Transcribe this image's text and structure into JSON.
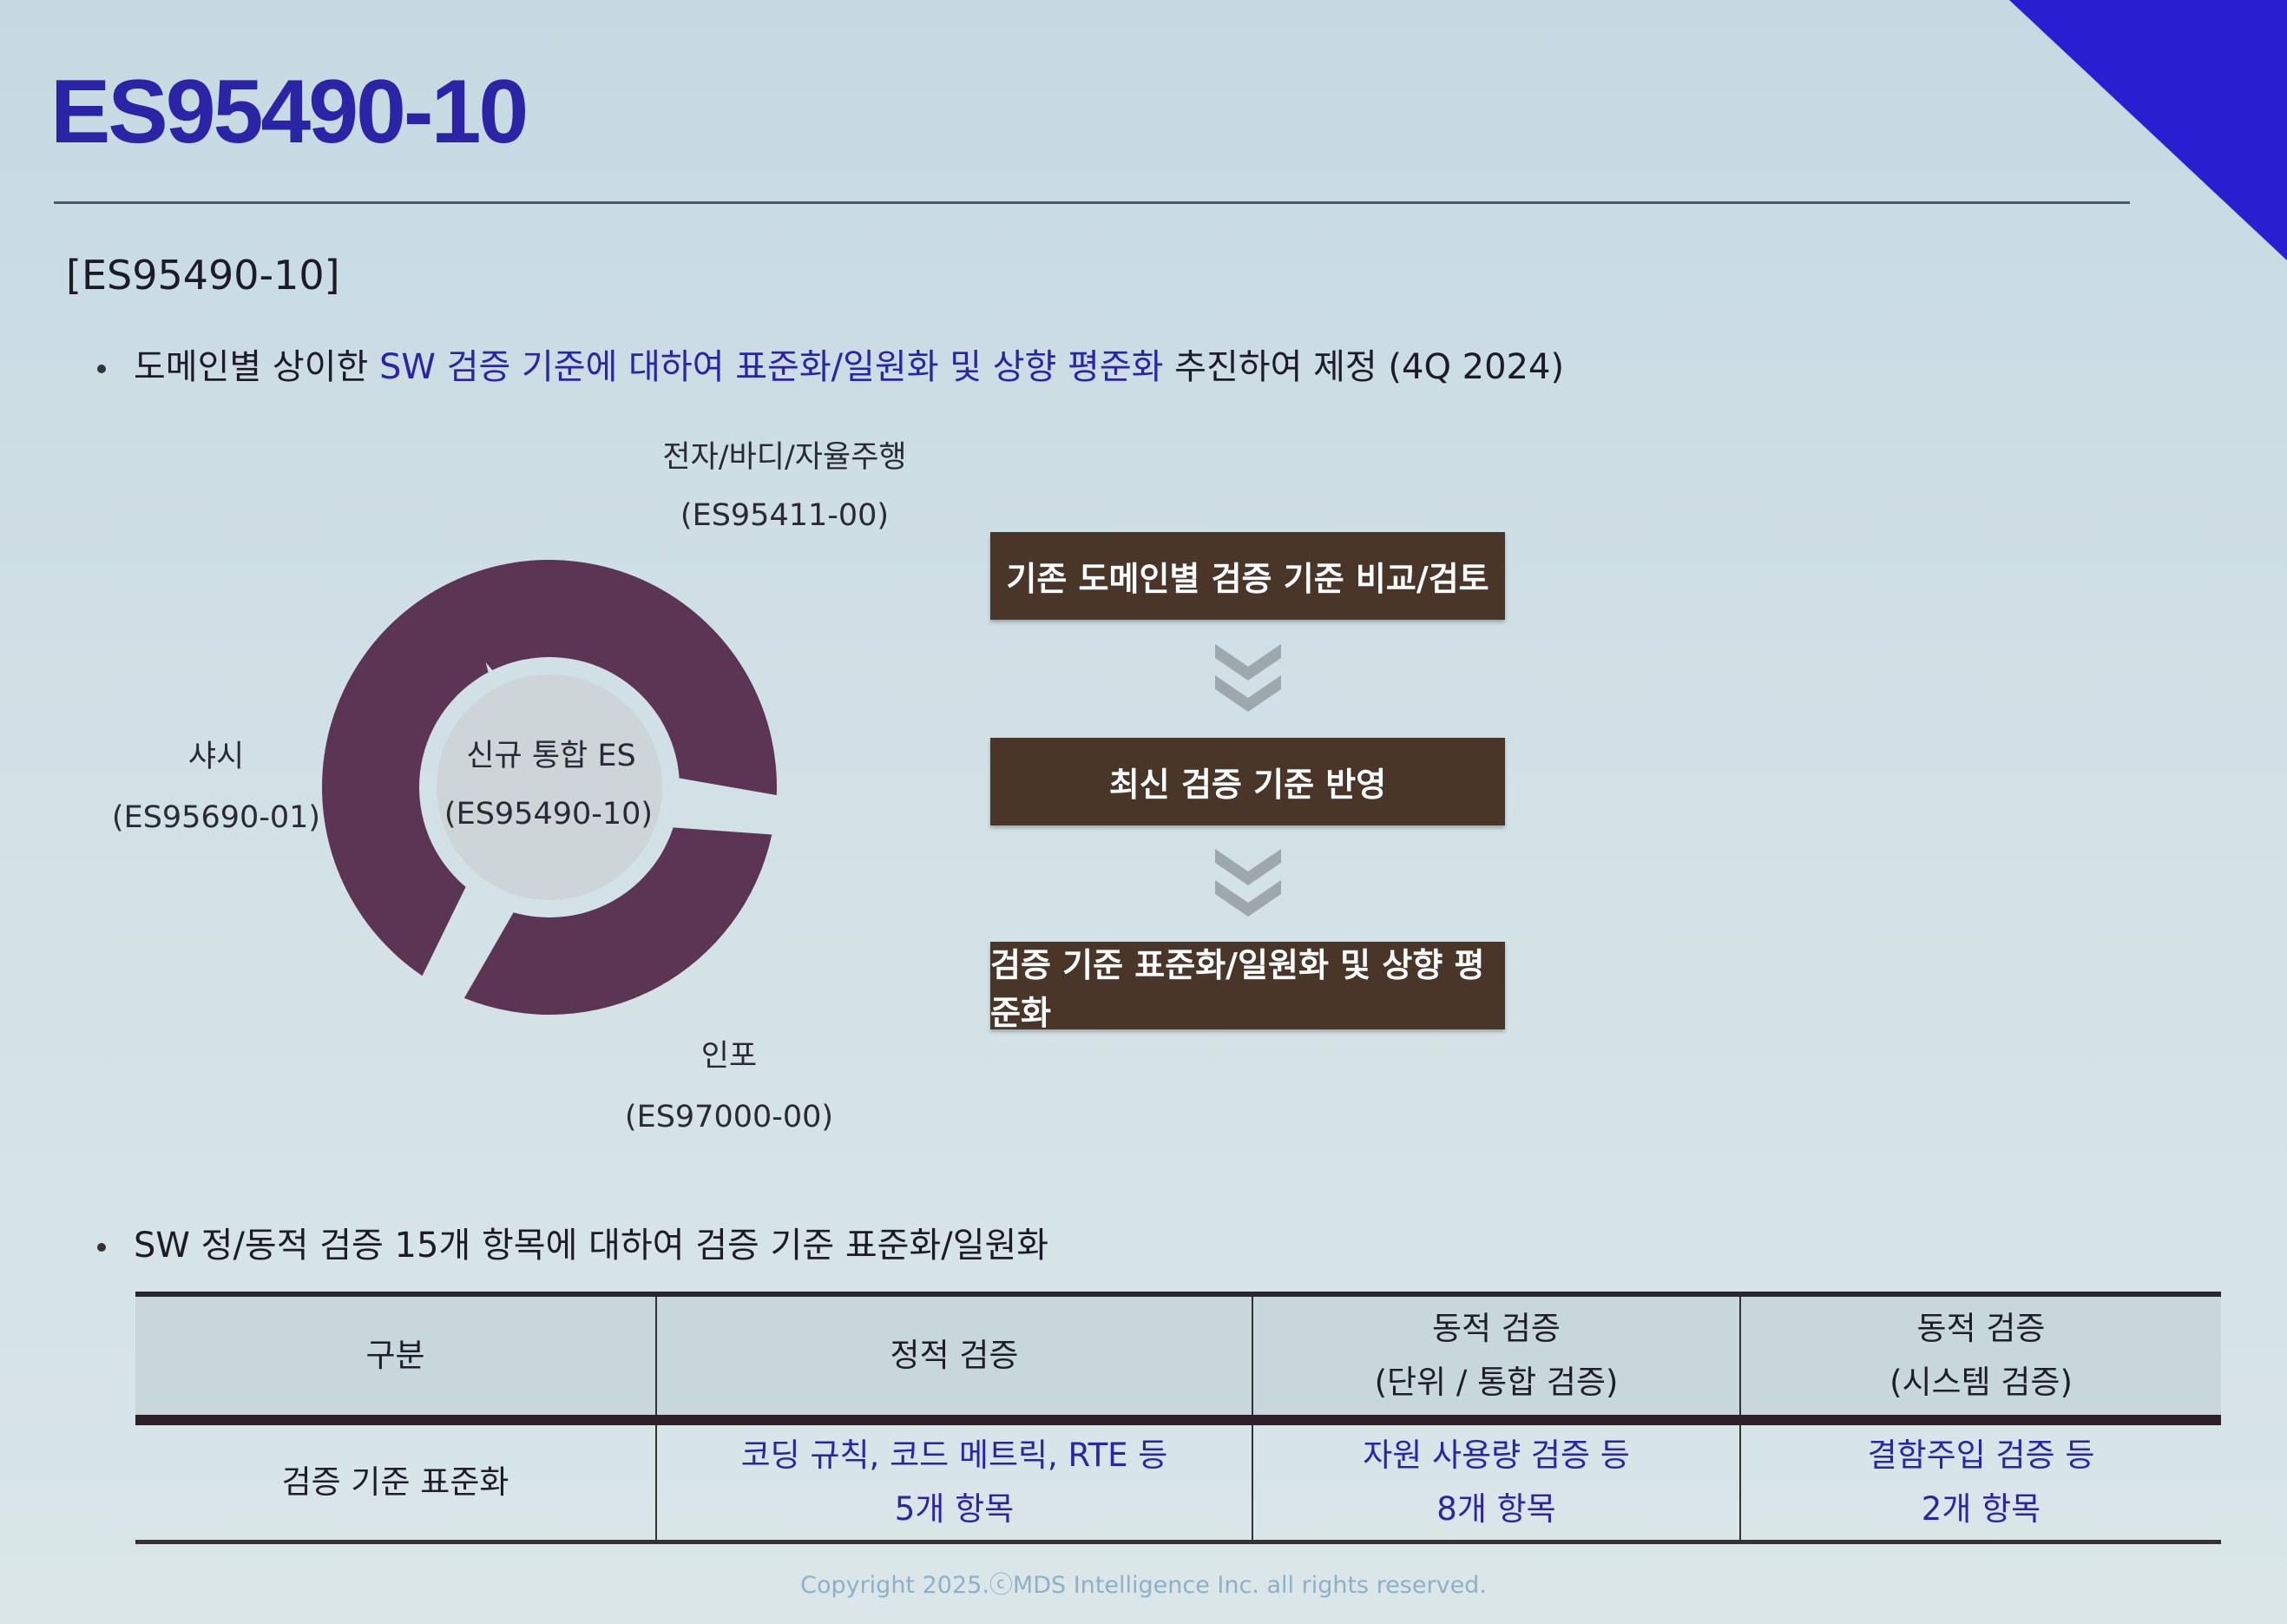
{
  "slide": {
    "title": "ES95490-10",
    "section_label": "[ES95490-10]",
    "bullet1": {
      "part1": "도메인별 상이한 ",
      "highlight": "SW 검증 기준에 대하여 표준화/일원화 및 상향 평준화",
      "part2": " 추진하여 제정  (4Q 2024)"
    },
    "bullet2": "SW 정/동적 검증 15개 항목에 대하여 검증 기준 표준화/일원화",
    "accent_color": "#2b24a6",
    "ring_color": "#5b3553",
    "box_color": "#4a3529"
  },
  "diagram": {
    "center": {
      "line1": "신규 통합 ES",
      "line2": "(ES95490-10)"
    },
    "domains": [
      {
        "name": "전자/바디/자율주행",
        "code": "(ES95411-00)"
      },
      {
        "name": "샤시",
        "code": "(ES95690-01)"
      },
      {
        "name": "인포",
        "code": "(ES97000-00)"
      }
    ]
  },
  "process": {
    "steps": [
      "기존 도메인별 검증 기준 비교/검토",
      "최신 검증 기준 반영",
      "검증 기준 표준화/일원화 및 상향 평준화"
    ],
    "arrow_icon": "double-chevron-down"
  },
  "table": {
    "headers": [
      {
        "line1": "구분",
        "line2": ""
      },
      {
        "line1": "정적 검증",
        "line2": ""
      },
      {
        "line1": "동적 검증",
        "line2": "(단위 / 통합 검증)"
      },
      {
        "line1": "동적 검증",
        "line2": "(시스템 검증)"
      }
    ],
    "row": {
      "label": "검증 기준 표준화",
      "cells": [
        {
          "line1": "코딩 규칙, 코드 메트릭, RTE 등",
          "line2": "5개 항목"
        },
        {
          "line1": "자원 사용량 검증 등",
          "line2": "8개 항목"
        },
        {
          "line1": "결함주입 검증 등",
          "line2": "2개 항목"
        }
      ]
    }
  },
  "footer": {
    "copyright": "Copyright 2025.ⓒMDS Intelligence Inc. all rights reserved."
  }
}
